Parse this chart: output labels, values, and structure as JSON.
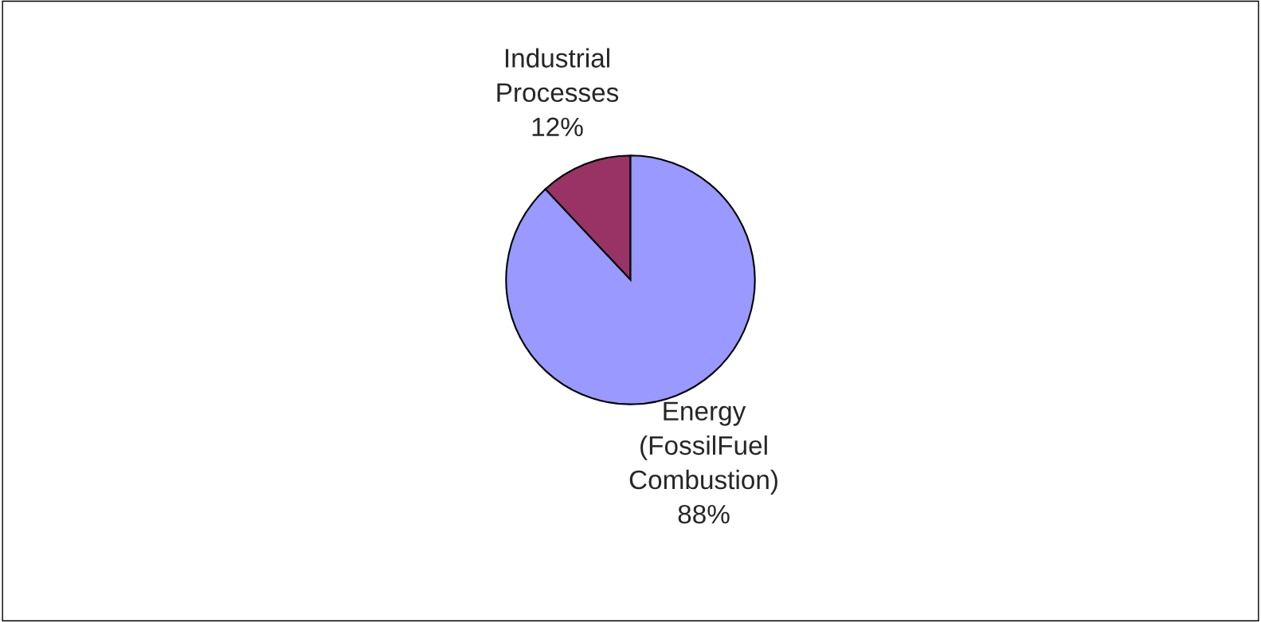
{
  "chart_data": {
    "type": "pie",
    "categories": [
      "Industrial\nProcesses",
      "Energy\n(FossilFuel\nCombustion)"
    ],
    "values": [
      12,
      88
    ],
    "colors": [
      "#993366",
      "#9999ff"
    ],
    "value_labels": [
      "12%",
      "88%"
    ]
  }
}
